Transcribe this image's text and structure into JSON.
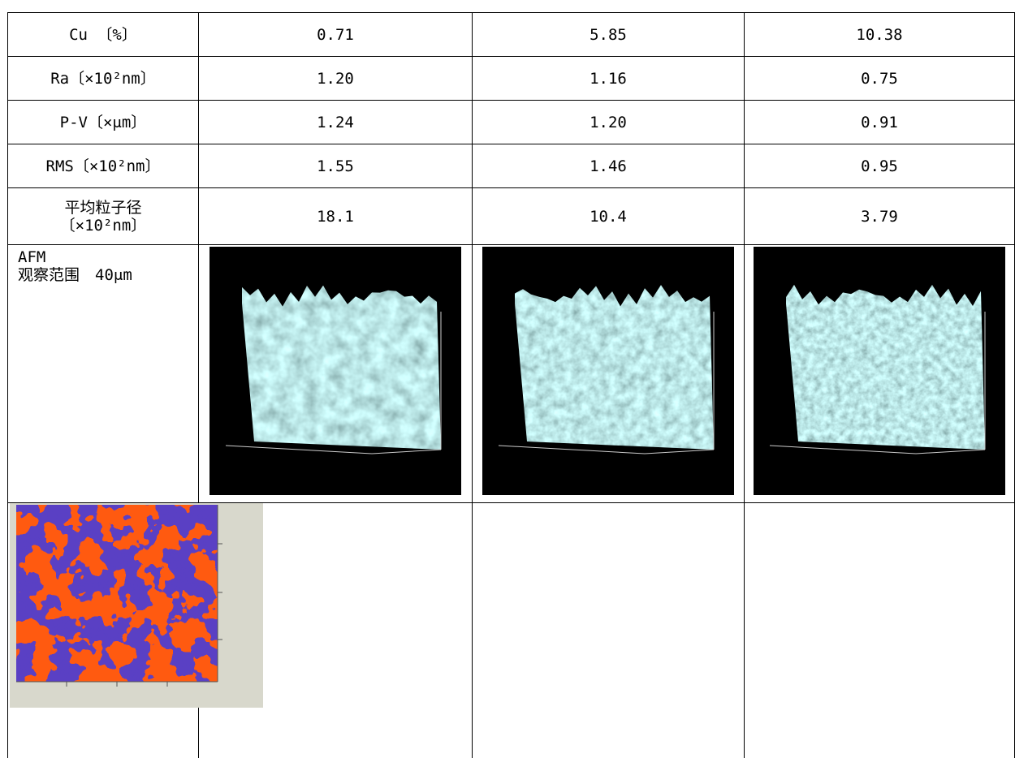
{
  "table": {
    "rows": [
      {
        "label_lines": [
          "Cu 〔%〕"
        ],
        "values": [
          "0.71",
          "5.85",
          "10.38"
        ]
      },
      {
        "label_lines": [
          "Ra〔×10²nm〕"
        ],
        "values": [
          "1.20",
          "1.16",
          "0.75"
        ]
      },
      {
        "label_lines": [
          "P-V〔×μm〕"
        ],
        "values": [
          "1.24",
          "1.20",
          "0.91"
        ]
      },
      {
        "label_lines": [
          "RMS〔×10²nm〕"
        ],
        "values": [
          "1.55",
          "1.46",
          "0.95"
        ]
      },
      {
        "label_lines": [
          "平均粒子径",
          "〔×10²nm〕"
        ],
        "values": [
          "18.1",
          "10.4",
          "3.79"
        ]
      }
    ],
    "afm_label_lines": [
      "AFM",
      "观察范围　40μm"
    ]
  }
}
